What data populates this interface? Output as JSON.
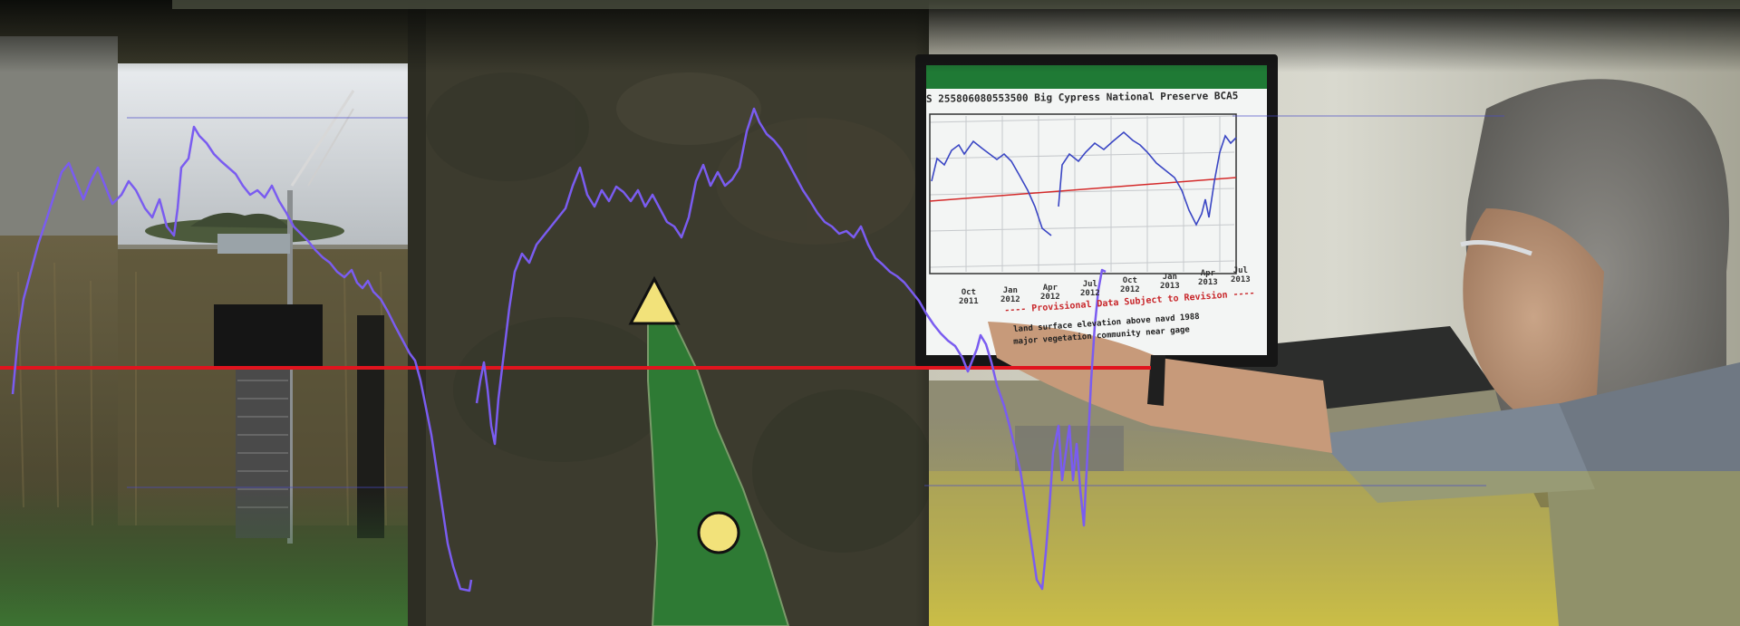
{
  "monitor": {
    "title": "S 255806080553500 Big Cypress National Preserve BCA5",
    "ticks": [
      {
        "line1": "Oct",
        "line2": "2011"
      },
      {
        "line1": "Jan",
        "line2": "2012"
      },
      {
        "line1": "Apr",
        "line2": "2012"
      },
      {
        "line1": "Jul",
        "line2": "2012"
      },
      {
        "line1": "Oct",
        "line2": "2012"
      },
      {
        "line1": "Jan",
        "line2": "2013"
      },
      {
        "line1": "Apr",
        "line2": "2013"
      },
      {
        "line1": "Jul",
        "line2": "2013"
      }
    ],
    "provisional_note": "---- Provisional Data Subject to Revision ----",
    "legend_line1": "land surface elevation above navd 1988",
    "legend_line2": "major vegetation community near gage"
  },
  "map_markers": {
    "triangle_color": "#f2e27a",
    "circle_color": "#f2e27a"
  },
  "colors": {
    "trace": "#7a5cf0",
    "reference_line": "#e0141e",
    "monitor_header": "#1f7a35",
    "map_strip": "#2e7a34"
  }
}
